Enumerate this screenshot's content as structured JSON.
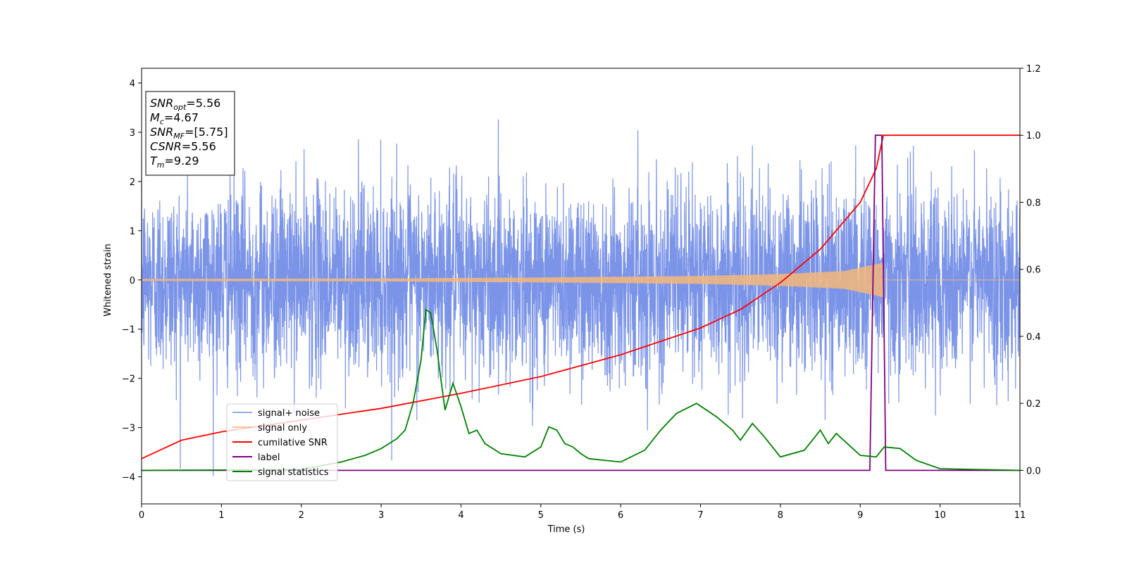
{
  "chart_data": {
    "type": "line",
    "xlabel": "Time (s)",
    "ylabel": "Whitened strain",
    "xlim": [
      0,
      11
    ],
    "ylim_left": [
      -4.55,
      4.3
    ],
    "ylim_right": [
      -0.1,
      1.2
    ],
    "x_ticks": [
      0,
      1,
      2,
      3,
      4,
      5,
      6,
      7,
      8,
      9,
      10,
      11
    ],
    "y_ticks_left": [
      -4,
      -3,
      -2,
      -1,
      0,
      1,
      2,
      3,
      4
    ],
    "y_ticks_right": [
      0.0,
      0.2,
      0.4,
      0.6,
      0.8,
      1.0,
      1.2
    ],
    "grid": false,
    "legend_position": "lower-left",
    "annotation_box": {
      "position": "upper-left",
      "lines": [
        {
          "symbol": "SNR",
          "sub": "opt",
          "value": "=5.56"
        },
        {
          "symbol": "M",
          "sub": "c",
          "value": "=4.67"
        },
        {
          "symbol": "SNR",
          "sub": "MF",
          "value": "=[5.75]"
        },
        {
          "symbol": "CSNR",
          "sub": "",
          "value": "=5.56"
        },
        {
          "symbol": "T",
          "sub": "m",
          "value": "=9.29"
        }
      ]
    },
    "series": [
      {
        "name": "signal+ noise",
        "axis": "left",
        "color": "#7b94e8",
        "kind": "noise",
        "x_range": [
          0,
          11
        ],
        "typical_range": [
          -1.5,
          1.5
        ],
        "extremes": [
          -4.15,
          3.92
        ]
      },
      {
        "name": "signal only",
        "axis": "left",
        "color": "#f5b77a",
        "kind": "chirp",
        "merger_time": 9.29,
        "envelope": {
          "x": [
            0,
            3,
            5,
            7,
            8,
            8.8,
            9.29
          ],
          "y": [
            0.02,
            0.03,
            0.05,
            0.08,
            0.12,
            0.18,
            0.35
          ]
        }
      },
      {
        "name": "cumilative SNR",
        "axis": "right",
        "color": "#ff0000",
        "x": [
          0,
          0.5,
          1,
          2,
          3,
          4,
          5,
          6,
          7,
          7.5,
          8,
          8.5,
          9,
          9.2,
          9.29,
          11
        ],
        "y": [
          0.035,
          0.09,
          0.115,
          0.15,
          0.185,
          0.23,
          0.28,
          0.345,
          0.425,
          0.48,
          0.56,
          0.66,
          0.8,
          0.9,
          1.0,
          1.0
        ]
      },
      {
        "name": "label",
        "axis": "right",
        "color": "#800080",
        "x": [
          0,
          9.12,
          9.19,
          9.27,
          9.32,
          11
        ],
        "y": [
          0,
          0,
          1.0,
          1.0,
          0,
          0
        ]
      },
      {
        "name": "signal statistics",
        "axis": "right",
        "color": "#008000",
        "x": [
          0,
          1,
          2,
          2.5,
          2.8,
          3.0,
          3.2,
          3.3,
          3.4,
          3.5,
          3.56,
          3.62,
          3.7,
          3.8,
          3.9,
          4.0,
          4.1,
          4.2,
          4.3,
          4.5,
          4.8,
          5.0,
          5.1,
          5.2,
          5.3,
          5.4,
          5.5,
          5.6,
          5.8,
          6.0,
          6.3,
          6.5,
          6.7,
          6.95,
          7.2,
          7.4,
          7.5,
          7.65,
          7.8,
          8.0,
          8.3,
          8.5,
          8.6,
          8.7,
          9.0,
          9.2,
          9.3,
          9.5,
          9.7,
          10.0,
          11
        ],
        "y": [
          0.0,
          0.001,
          0.003,
          0.025,
          0.045,
          0.065,
          0.095,
          0.12,
          0.2,
          0.33,
          0.48,
          0.47,
          0.36,
          0.18,
          0.26,
          0.19,
          0.11,
          0.12,
          0.08,
          0.05,
          0.04,
          0.07,
          0.13,
          0.12,
          0.08,
          0.07,
          0.05,
          0.035,
          0.03,
          0.025,
          0.06,
          0.12,
          0.17,
          0.2,
          0.16,
          0.12,
          0.09,
          0.14,
          0.1,
          0.04,
          0.06,
          0.12,
          0.08,
          0.11,
          0.045,
          0.04,
          0.07,
          0.065,
          0.03,
          0.005,
          0.0
        ]
      }
    ]
  }
}
